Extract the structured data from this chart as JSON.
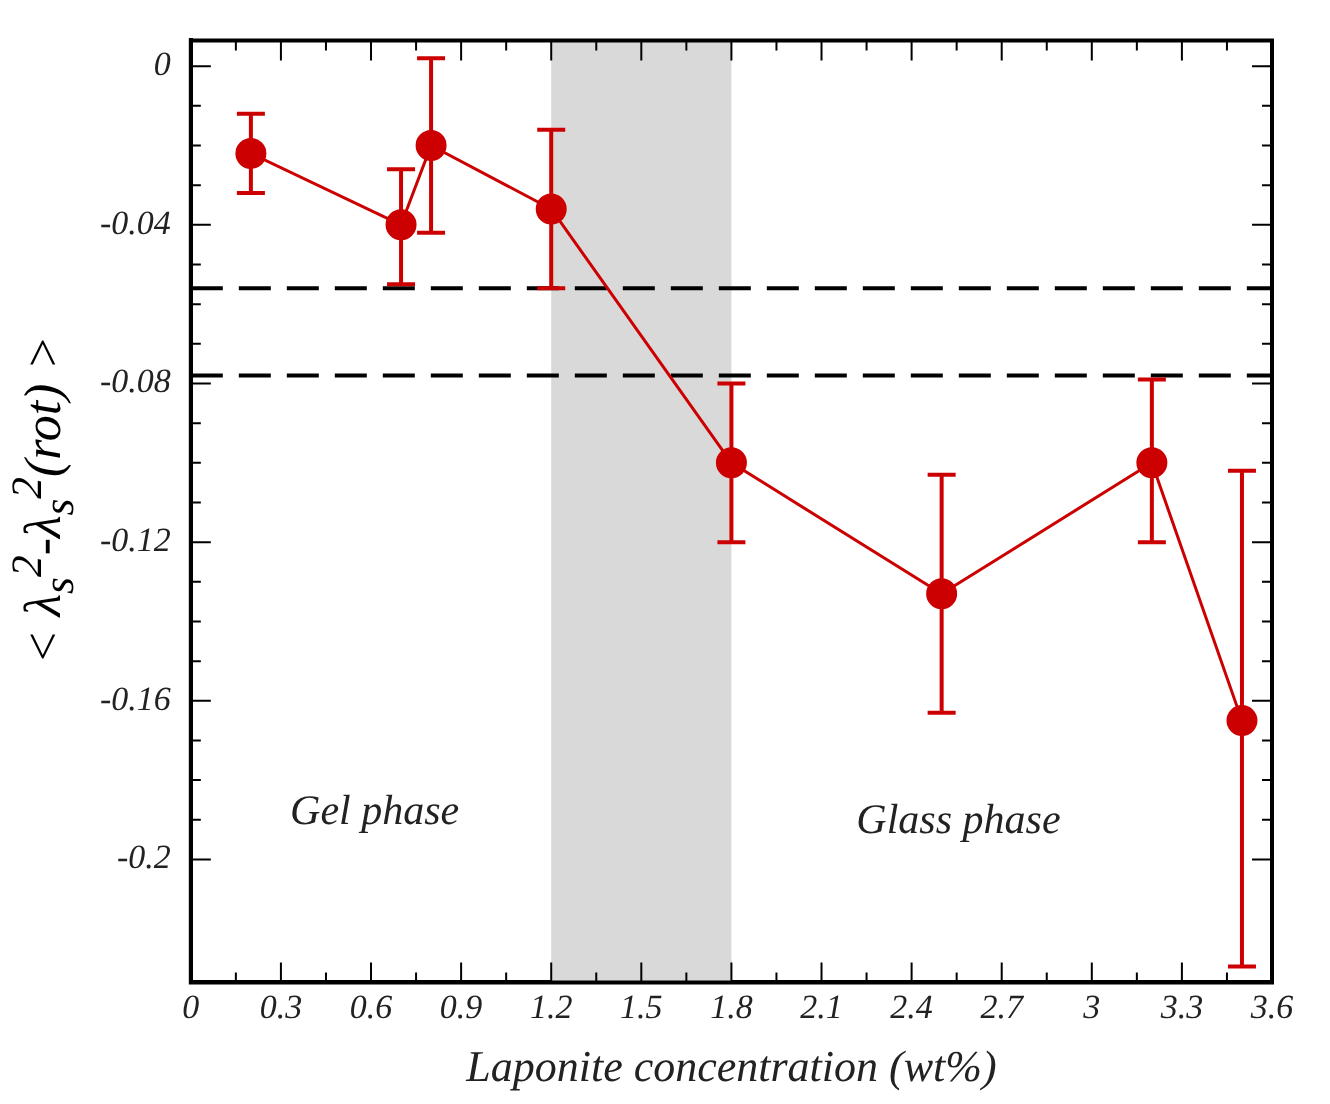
{
  "chart_data": {
    "type": "line",
    "xlabel": "Laponite concentration (wt%)",
    "ylabel": "< λ$_{s}$$^{2}$-λ$_{s}$$^{2}$(rot) >",
    "x": [
      0.2,
      0.7,
      0.8,
      1.2,
      1.8,
      2.5,
      3.2,
      3.5
    ],
    "series": [
      {
        "color": "#cc0000",
        "values": [
          -0.022,
          -0.04,
          -0.02,
          -0.036,
          -0.1,
          -0.133,
          -0.1,
          -0.165
        ],
        "errors": [
          [
            -0.032,
            -0.012
          ],
          [
            -0.055,
            -0.026
          ],
          [
            -0.042,
            0.002
          ],
          [
            -0.056,
            -0.016
          ],
          [
            -0.12,
            -0.08
          ],
          [
            -0.163,
            -0.103
          ],
          [
            -0.12,
            -0.079
          ],
          [
            -0.227,
            -0.102
          ]
        ]
      }
    ],
    "xlim": [
      0,
      3.6
    ],
    "xticks": [
      0,
      0.3,
      0.6,
      0.9,
      1.2,
      1.5,
      1.8,
      2.1,
      2.4,
      2.7,
      3,
      3.3,
      3.6
    ],
    "ylim": [
      -0.231,
      0.0065
    ],
    "yticks": [
      0,
      -0.04,
      -0.08,
      -0.12,
      -0.16,
      -0.2
    ],
    "ref_lines": [
      {
        "axis": "y",
        "value": -0.056,
        "color": "#000000",
        "line_style": "dashed"
      },
      {
        "axis": "y",
        "value": -0.078,
        "color": "#000000",
        "line_style": "dashed"
      }
    ],
    "bands": [
      {
        "axis": "x",
        "from": 1.2,
        "to": 1.8,
        "color": "#d9d9d9"
      }
    ],
    "annotations": [
      "Gel phase",
      "Glass phase"
    ],
    "grid": false,
    "legend": false,
    "marker": "circle",
    "line_style": "solid"
  }
}
